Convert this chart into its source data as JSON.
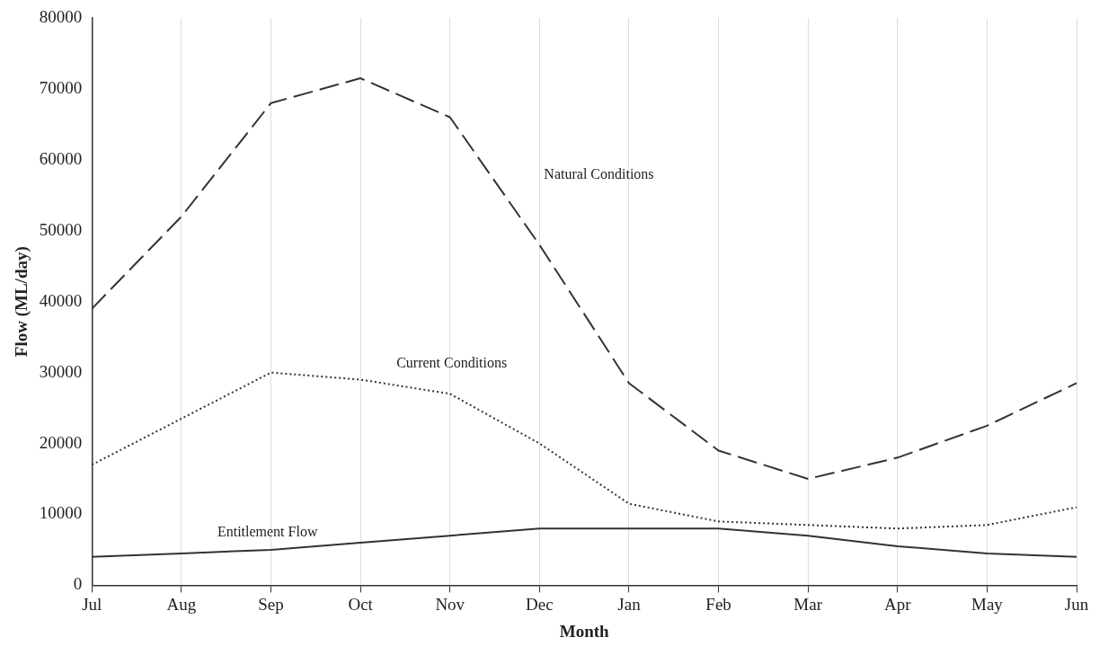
{
  "chart_data": {
    "type": "line",
    "xlabel": "Month",
    "ylabel": "Flow (ML/day)",
    "categories": [
      "Jul",
      "Aug",
      "Sep",
      "Oct",
      "Nov",
      "Dec",
      "Jan",
      "Feb",
      "Mar",
      "Apr",
      "May",
      "Jun"
    ],
    "series": [
      {
        "name": "Natural Conditions",
        "color": "#333333",
        "line_style": "dashed",
        "values": [
          39000,
          52000,
          68000,
          71500,
          66000,
          48000,
          28500,
          19000,
          15000,
          18000,
          22500,
          28500
        ]
      },
      {
        "name": "Current Conditions",
        "color": "#333333",
        "line_style": "dotted",
        "values": [
          17000,
          23500,
          30000,
          29000,
          27000,
          20000,
          11500,
          9000,
          8500,
          8000,
          8500,
          11000
        ]
      },
      {
        "name": "Entitlement Flow",
        "color": "#333333",
        "line_style": "solid",
        "values": [
          4000,
          4500,
          5000,
          6000,
          7000,
          8000,
          8000,
          8000,
          7000,
          5500,
          4500,
          4000
        ]
      }
    ],
    "ylim": [
      0,
      80000
    ],
    "yticks": [
      0,
      10000,
      20000,
      30000,
      40000,
      50000,
      60000,
      70000,
      80000
    ],
    "grid": "x",
    "legend": false,
    "marker": "none"
  }
}
